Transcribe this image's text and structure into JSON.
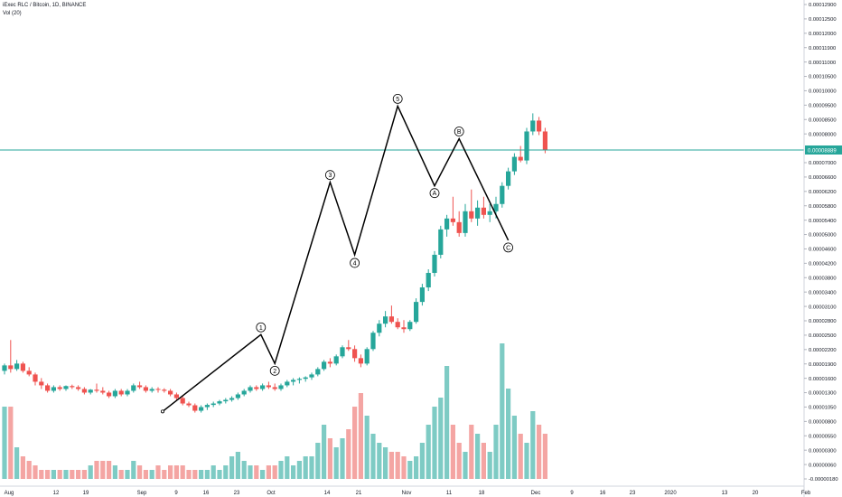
{
  "header": {
    "symbol_line": "iExec RLC / Bitcoin, 1D, BINANCE",
    "volume_label": "Vol (20)"
  },
  "colors": {
    "up": "#26a69a",
    "down": "#ef5350",
    "vol_up": "#7ecbc4",
    "vol_down": "#f4a5a3",
    "price_line": "#26a69a",
    "wave_line": "#000000",
    "grid_text": "#131722",
    "last_price_badge": "#26a69a"
  },
  "chart_data": {
    "type": "candlestick",
    "title": "iExec RLC / Bitcoin, 1D, BINANCE",
    "price_axis_labels": [
      "0.00012900",
      "0.00012500",
      "0.00012000",
      "0.00011900",
      "0.00011000",
      "0.00010500",
      "0.00010000",
      "0.00009500",
      "0.00008500",
      "0.00008000",
      "0.00007500",
      "0.00007000",
      "0.00006600",
      "0.00006200",
      "0.00005800",
      "0.00005400",
      "0.00005000",
      "0.00004600",
      "0.00004200",
      "0.00003800",
      "0.00003400",
      "0.00003100",
      "0.00002800",
      "0.00002500",
      "0.00002200",
      "0.00001900",
      "0.00001600",
      "0.00001300",
      "0.00001050",
      "0.00000800",
      "0.00000550",
      "0.00000300",
      "0.00000060",
      "-0.00000180"
    ],
    "last_price": "0.00008889",
    "x_axis_labels": [
      "Aug",
      "12",
      "19",
      "Sep",
      "9",
      "16",
      "23",
      "Oct",
      "14",
      "21",
      "Nov",
      "11",
      "18",
      "Dec",
      "9",
      "16",
      "23",
      "2020",
      "13",
      "20",
      "Feb"
    ],
    "candles": [
      [
        2.8e-05,
        3e-05,
        2.7e-05,
        2.95e-05,
        16
      ],
      [
        2.95e-05,
        3.65e-05,
        2.75e-05,
        2.85e-05,
        16
      ],
      [
        2.85e-05,
        3.1e-05,
        2.8e-05,
        3e-05,
        7
      ],
      [
        3e-05,
        3.05e-05,
        2.75e-05,
        2.8e-05,
        5
      ],
      [
        2.8e-05,
        2.9e-05,
        2.65e-05,
        2.7e-05,
        4
      ],
      [
        2.7e-05,
        2.75e-05,
        2.4e-05,
        2.5e-05,
        3
      ],
      [
        2.5e-05,
        2.6e-05,
        2.3e-05,
        2.4e-05,
        2
      ],
      [
        2.4e-05,
        2.45e-05,
        2.2e-05,
        2.25e-05,
        2
      ],
      [
        2.25e-05,
        2.4e-05,
        2.2e-05,
        2.35e-05,
        2
      ],
      [
        2.35e-05,
        2.4e-05,
        2.25e-05,
        2.3e-05,
        2
      ],
      [
        2.3e-05,
        2.4e-05,
        2.25e-05,
        2.38e-05,
        2
      ],
      [
        2.38e-05,
        2.42e-05,
        2.3e-05,
        2.35e-05,
        2
      ],
      [
        2.35e-05,
        2.4e-05,
        2.25e-05,
        2.3e-05,
        2
      ],
      [
        2.3e-05,
        2.35e-05,
        2.15e-05,
        2.2e-05,
        2
      ],
      [
        2.2e-05,
        2.3e-05,
        2.15e-05,
        2.28e-05,
        3
      ],
      [
        2.28e-05,
        2.45e-05,
        2.2e-05,
        2.25e-05,
        4
      ],
      [
        2.25e-05,
        2.35e-05,
        2.15e-05,
        2.2e-05,
        4
      ],
      [
        2.2e-05,
        2.25e-05,
        2.05e-05,
        2.1e-05,
        4
      ],
      [
        2.1e-05,
        2.3e-05,
        2.05e-05,
        2.25e-05,
        3
      ],
      [
        2.25e-05,
        2.3e-05,
        2.1e-05,
        2.15e-05,
        2
      ],
      [
        2.15e-05,
        2.3e-05,
        2.1e-05,
        2.25e-05,
        2
      ],
      [
        2.25e-05,
        2.45e-05,
        2.2e-05,
        2.4e-05,
        4
      ],
      [
        2.4e-05,
        2.5e-05,
        2.3e-05,
        2.35e-05,
        3
      ],
      [
        2.35e-05,
        2.4e-05,
        2.2e-05,
        2.25e-05,
        2
      ],
      [
        2.25e-05,
        2.35e-05,
        2.2e-05,
        2.3e-05,
        2
      ],
      [
        2.3e-05,
        2.35e-05,
        2.2e-05,
        2.28e-05,
        3
      ],
      [
        2.28e-05,
        2.32e-05,
        2.2e-05,
        2.25e-05,
        2
      ],
      [
        2.25e-05,
        2.3e-05,
        2.1e-05,
        2.15e-05,
        3
      ],
      [
        2.15e-05,
        2.2e-05,
        2e-05,
        2.05e-05,
        3
      ],
      [
        2.05e-05,
        2.1e-05,
        1.85e-05,
        1.9e-05,
        3
      ],
      [
        1.9e-05,
        1.95e-05,
        1.8e-05,
        1.85e-05,
        2
      ],
      [
        1.85e-05,
        1.9e-05,
        1.65e-05,
        1.7e-05,
        2
      ],
      [
        1.7e-05,
        1.85e-05,
        1.65e-05,
        1.8e-05,
        2
      ],
      [
        1.8e-05,
        1.9e-05,
        1.72e-05,
        1.86e-05,
        2
      ],
      [
        1.86e-05,
        1.95e-05,
        1.8e-05,
        1.9e-05,
        3
      ],
      [
        1.9e-05,
        2e-05,
        1.85e-05,
        1.96e-05,
        2
      ],
      [
        1.96e-05,
        2.05e-05,
        1.9e-05,
        2e-05,
        3
      ],
      [
        2e-05,
        2.1e-05,
        1.95e-05,
        2.05e-05,
        5
      ],
      [
        2.05e-05,
        2.2e-05,
        2e-05,
        2.15e-05,
        6
      ],
      [
        2.15e-05,
        2.3e-05,
        2.1e-05,
        2.25e-05,
        4
      ],
      [
        2.25e-05,
        2.4e-05,
        2.2e-05,
        2.35e-05,
        3
      ],
      [
        2.35e-05,
        2.4e-05,
        2.25e-05,
        2.3e-05,
        3
      ],
      [
        2.3e-05,
        2.45e-05,
        2.25e-05,
        2.4e-05,
        2
      ],
      [
        2.4e-05,
        2.5e-05,
        2.3e-05,
        2.35e-05,
        3
      ],
      [
        2.35e-05,
        2.45e-05,
        2.25e-05,
        2.3e-05,
        3
      ],
      [
        2.3e-05,
        2.45e-05,
        2.25e-05,
        2.4e-05,
        4
      ],
      [
        2.4e-05,
        2.55e-05,
        2.35e-05,
        2.5e-05,
        5
      ],
      [
        2.5e-05,
        2.6e-05,
        2.4e-05,
        2.55e-05,
        3
      ],
      [
        2.55e-05,
        2.62e-05,
        2.45e-05,
        2.58e-05,
        4
      ],
      [
        2.58e-05,
        2.65e-05,
        2.5e-05,
        2.62e-05,
        5
      ],
      [
        2.62e-05,
        2.75e-05,
        2.55e-05,
        2.7e-05,
        5
      ],
      [
        2.7e-05,
        2.9e-05,
        2.65e-05,
        2.85e-05,
        8
      ],
      [
        2.85e-05,
        3.1e-05,
        2.8e-05,
        3.05e-05,
        12
      ],
      [
        3.05e-05,
        3.15e-05,
        2.9e-05,
        3e-05,
        9
      ],
      [
        3e-05,
        3.25e-05,
        2.95e-05,
        3.2e-05,
        7
      ],
      [
        3.2e-05,
        3.5e-05,
        3.15e-05,
        3.45e-05,
        9
      ],
      [
        3.45e-05,
        3.65e-05,
        3.35e-05,
        3.4e-05,
        11
      ],
      [
        3.4e-05,
        3.5e-05,
        3.05e-05,
        3.15e-05,
        16
      ],
      [
        3.15e-05,
        3.25e-05,
        2.9e-05,
        3e-05,
        19
      ],
      [
        3e-05,
        3.45e-05,
        2.95e-05,
        3.4e-05,
        14
      ],
      [
        3.4e-05,
        3.9e-05,
        3.35e-05,
        3.85e-05,
        10
      ],
      [
        3.85e-05,
        4.2e-05,
        3.75e-05,
        4.1e-05,
        8
      ],
      [
        4.1e-05,
        4.45e-05,
        4e-05,
        4.3e-05,
        7
      ],
      [
        4.3e-05,
        4.6e-05,
        4.1e-05,
        4.15e-05,
        6
      ],
      [
        4.15e-05,
        4.25e-05,
        3.95e-05,
        4e-05,
        6
      ],
      [
        4e-05,
        4.2e-05,
        3.85e-05,
        3.95e-05,
        5
      ],
      [
        3.95e-05,
        4.2e-05,
        3.9e-05,
        4.15e-05,
        4
      ],
      [
        4.15e-05,
        4.8e-05,
        4.1e-05,
        4.7e-05,
        5
      ],
      [
        4.7e-05,
        5.2e-05,
        4.6e-05,
        5.1e-05,
        8
      ],
      [
        5.1e-05,
        5.6e-05,
        5e-05,
        5.5e-05,
        12
      ],
      [
        5.5e-05,
        6.1e-05,
        5.4e-05,
        6e-05,
        16
      ],
      [
        6e-05,
        6.8e-05,
        5.9e-05,
        6.7e-05,
        18
      ],
      [
        6.7e-05,
        7.1e-05,
        6.5e-05,
        7e-05,
        25
      ],
      [
        7e-05,
        7.6e-05,
        6.8e-05,
        6.9e-05,
        12
      ],
      [
        6.9e-05,
        7.2e-05,
        6.5e-05,
        6.6e-05,
        8
      ],
      [
        6.6e-05,
        7.4e-05,
        6.5e-05,
        7.2e-05,
        6
      ],
      [
        7.2e-05,
        7.8e-05,
        6.9e-05,
        7e-05,
        12
      ],
      [
        7e-05,
        7.5e-05,
        6.8e-05,
        7.3e-05,
        10
      ],
      [
        7.3e-05,
        7.6e-05,
        7e-05,
        7.1e-05,
        8
      ],
      [
        7.1e-05,
        7.4e-05,
        6.9e-05,
        7.2e-05,
        6
      ],
      [
        7.2e-05,
        7.6e-05,
        7e-05,
        7.4e-05,
        12
      ],
      [
        7.4e-05,
        8e-05,
        7.3e-05,
        7.9e-05,
        30
      ],
      [
        7.9e-05,
        8.4e-05,
        7.8e-05,
        8.3e-05,
        20
      ],
      [
        8.3e-05,
        8.8e-05,
        8.2e-05,
        8.7e-05,
        14
      ],
      [
        8.7e-05,
        9e-05,
        8.55e-05,
        8.6e-05,
        10
      ],
      [
        8.6e-05,
        9.5e-05,
        8.5e-05,
        9.4e-05,
        8
      ],
      [
        9.4e-05,
        9.9e-05,
        9.3e-05,
        9.7e-05,
        15
      ],
      [
        9.7e-05,
        9.8e-05,
        9.3e-05,
        9.4e-05,
        12
      ],
      [
        9.4e-05,
        9.5e-05,
        8.8e-05,
        8.9e-05,
        10
      ]
    ],
    "wave_points": [
      {
        "label": "1",
        "x": 41,
        "y": 3.8e-05
      },
      {
        "label": "2",
        "x": 44,
        "y": 3e-05
      },
      {
        "label": "3",
        "x": 53,
        "y": 8e-05
      },
      {
        "label": "4",
        "x": 57,
        "y": 6e-05
      },
      {
        "label": "5",
        "x": 64,
        "y": 0.000101
      },
      {
        "label": "A",
        "x": 70,
        "y": 7.9e-05
      },
      {
        "label": "B",
        "x": 74,
        "y": 9.2e-05
      },
      {
        "label": "C",
        "x": 82,
        "y": 6.4e-05
      }
    ]
  }
}
